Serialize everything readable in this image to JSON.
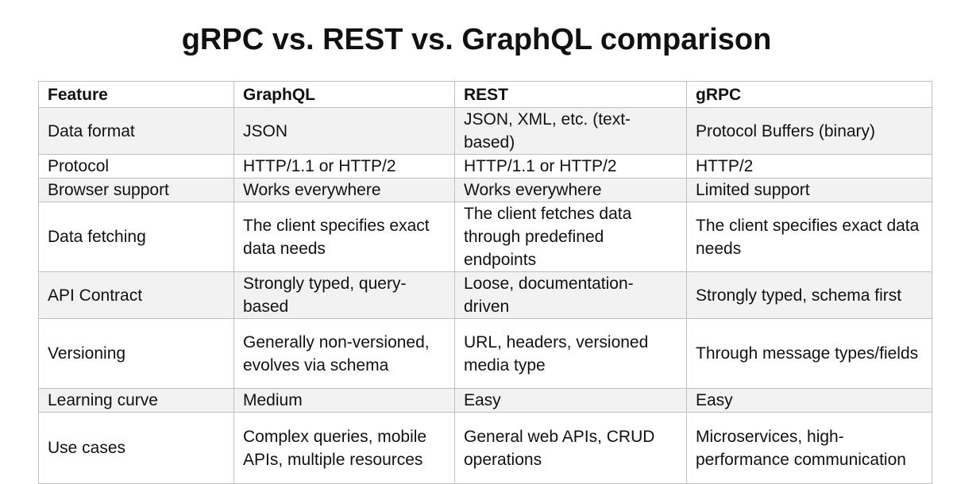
{
  "header": {
    "title": "gRPC vs. REST vs. GraphQL comparison"
  },
  "table": {
    "columns": [
      "Feature",
      "GraphQL",
      "REST",
      "gRPC"
    ],
    "rows": [
      [
        "Data format",
        "JSON",
        "JSON, XML, etc. (text-based)",
        "Protocol Buffers (binary)"
      ],
      [
        "Protocol",
        "HTTP/1.1 or HTTP/2",
        "HTTP/1.1 or HTTP/2",
        "HTTP/2"
      ],
      [
        "Browser support",
        "Works everywhere",
        "Works everywhere",
        "Limited support"
      ],
      [
        "Data fetching",
        "The client specifies exact data needs",
        "The client fetches data through predefined endpoints",
        "The client specifies exact data needs"
      ],
      [
        "API Contract",
        "Strongly typed, query-based",
        "Loose, documentation-driven",
        "Strongly typed, schema first"
      ],
      [
        "Versioning",
        "Generally non-versioned, evolves via schema",
        "URL, headers, versioned media type",
        "Through message types/fields"
      ],
      [
        "Learning curve",
        "Medium",
        "Easy",
        "Easy"
      ],
      [
        "Use cases",
        "Complex queries, mobile APIs, multiple resources",
        "General web APIs, CRUD operations",
        "Microservices, high-performance communication"
      ]
    ]
  }
}
